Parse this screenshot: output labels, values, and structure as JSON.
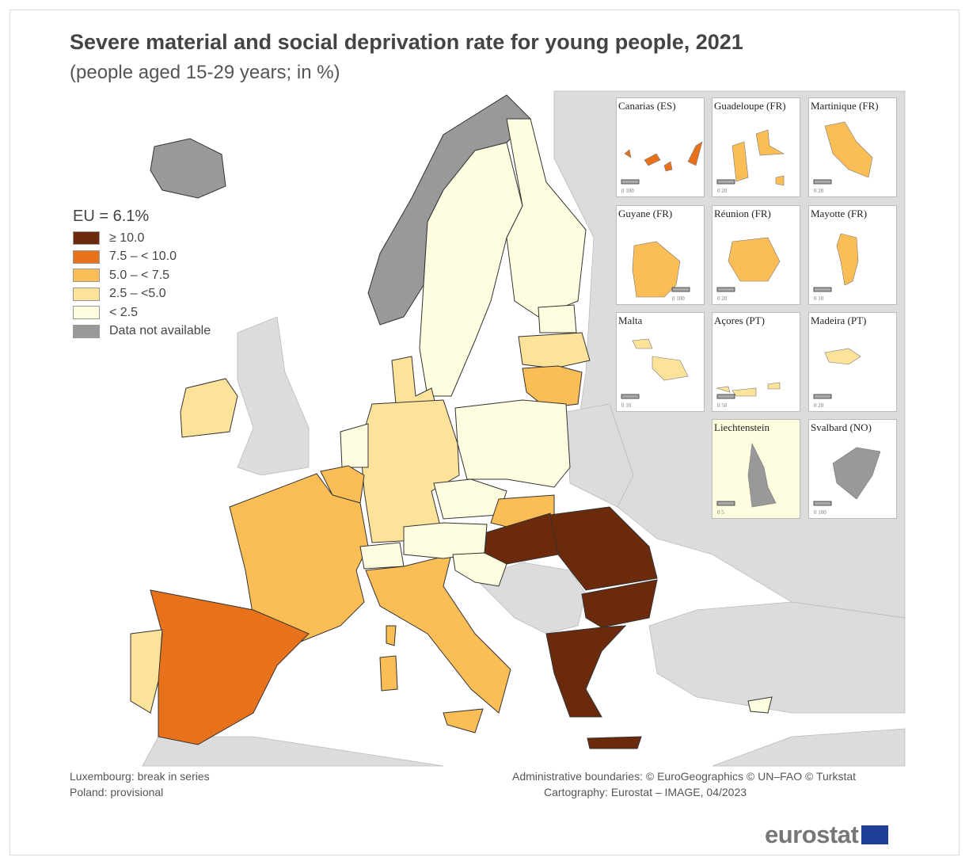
{
  "title": "Severe material and social deprivation rate for young people, 2021",
  "subtitle": "(people aged 15-29 years; in %)",
  "legend": {
    "eu_value": "EU = 6.1%",
    "classes": [
      {
        "label": "≥ 10.0",
        "color": "#6b2a0c"
      },
      {
        "label": "7.5 – < 10.0",
        "color": "#e8711c"
      },
      {
        "label": "5.0 – < 7.5",
        "color": "#fbbd55"
      },
      {
        "label": "2.5 – <5.0",
        "color": "#fde39a"
      },
      {
        "label": "< 2.5",
        "color": "#fffde0"
      },
      {
        "label": "Data not available",
        "color": "#999999"
      }
    ]
  },
  "colors": {
    "non_eu_land": "#dcdcdc",
    "sea": "#ffffff",
    "border": "#333333"
  },
  "insets": [
    {
      "label": "Canarias (ES)",
      "scale": "0   100"
    },
    {
      "label": "Guadeloupe (FR)",
      "scale": "0   20"
    },
    {
      "label": "Martinique (FR)",
      "scale": "0   20"
    },
    {
      "label": "Guyane (FR)",
      "scale": "0  100"
    },
    {
      "label": "Réunion (FR)",
      "scale": "0   20"
    },
    {
      "label": "Mayotte (FR)",
      "scale": "0   10"
    },
    {
      "label": "Malta",
      "scale": "0   10"
    },
    {
      "label": "Açores (PT)",
      "scale": "0    50"
    },
    {
      "label": "Madeira (PT)",
      "scale": "0   20"
    },
    {
      "label": "Liechtenstein",
      "scale": "0   5"
    },
    {
      "label": "Svalbard (NO)",
      "scale": "0  100"
    }
  ],
  "footer": {
    "note1": "Luxembourg: break in series",
    "note2": "Poland: provisional",
    "credits1": "Administrative boundaries: © EuroGeographics © UN–FAO © Turkstat",
    "credits2": "Cartography: Eurostat – IMAGE, 04/2023",
    "logo": "eurostat"
  }
}
